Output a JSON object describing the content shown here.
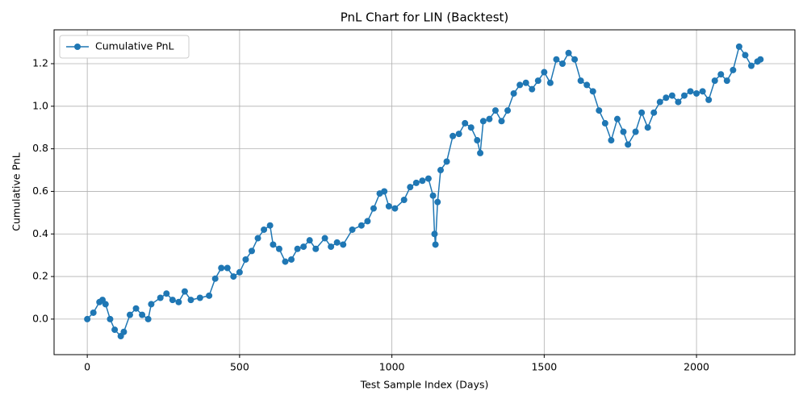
{
  "chart_data": {
    "type": "line",
    "title": "PnL Chart for LIN (Backtest)",
    "x_label": "Test Sample Index (Days)",
    "y_label": "Cumulative PnL",
    "x": [
      0,
      20,
      40,
      50,
      60,
      75,
      90,
      110,
      120,
      140,
      160,
      180,
      200,
      210,
      240,
      260,
      280,
      300,
      320,
      340,
      370,
      400,
      420,
      440,
      460,
      480,
      500,
      520,
      540,
      560,
      580,
      600,
      610,
      630,
      650,
      670,
      690,
      710,
      730,
      750,
      780,
      800,
      820,
      840,
      870,
      900,
      920,
      940,
      960,
      975,
      990,
      1010,
      1040,
      1060,
      1080,
      1100,
      1120,
      1135,
      1140,
      1143,
      1150,
      1160,
      1180,
      1200,
      1220,
      1240,
      1260,
      1280,
      1290,
      1300,
      1320,
      1340,
      1360,
      1380,
      1400,
      1420,
      1440,
      1460,
      1480,
      1500,
      1520,
      1540,
      1560,
      1580,
      1600,
      1620,
      1640,
      1660,
      1680,
      1700,
      1720,
      1740,
      1760,
      1775,
      1800,
      1820,
      1840,
      1860,
      1880,
      1900,
      1920,
      1940,
      1960,
      1980,
      2000,
      2020,
      2040,
      2060,
      2080,
      2100,
      2120,
      2140,
      2160,
      2180,
      2200,
      2210
    ],
    "series": [
      {
        "name": "Cumulative PnL",
        "color": "#1f77b4",
        "values": [
          0.0,
          0.03,
          0.08,
          0.09,
          0.07,
          0.0,
          -0.05,
          -0.08,
          -0.06,
          0.02,
          0.05,
          0.02,
          0.0,
          0.07,
          0.1,
          0.12,
          0.09,
          0.08,
          0.13,
          0.09,
          0.1,
          0.11,
          0.19,
          0.24,
          0.24,
          0.2,
          0.22,
          0.28,
          0.32,
          0.38,
          0.42,
          0.44,
          0.35,
          0.33,
          0.27,
          0.28,
          0.33,
          0.34,
          0.37,
          0.33,
          0.38,
          0.34,
          0.36,
          0.35,
          0.42,
          0.44,
          0.46,
          0.52,
          0.59,
          0.6,
          0.53,
          0.52,
          0.56,
          0.62,
          0.64,
          0.65,
          0.66,
          0.58,
          0.4,
          0.35,
          0.55,
          0.7,
          0.74,
          0.86,
          0.87,
          0.92,
          0.9,
          0.84,
          0.78,
          0.93,
          0.94,
          0.98,
          0.93,
          0.98,
          1.06,
          1.1,
          1.11,
          1.08,
          1.12,
          1.16,
          1.11,
          1.22,
          1.2,
          1.25,
          1.22,
          1.12,
          1.1,
          1.07,
          0.98,
          0.92,
          0.84,
          0.94,
          0.88,
          0.82,
          0.88,
          0.97,
          0.9,
          0.97,
          1.02,
          1.04,
          1.05,
          1.02,
          1.05,
          1.07,
          1.06,
          1.07,
          1.03,
          1.12,
          1.15,
          1.12,
          1.17,
          1.28,
          1.24,
          1.19,
          1.21,
          1.22
        ]
      }
    ],
    "xlim": [
      -109,
      2323
    ],
    "ylim": [
      -0.167,
      1.359
    ],
    "xticks": [
      0,
      500,
      1000,
      1500,
      2000
    ],
    "yticks": [
      {
        "value": 0,
        "label": "0.0"
      },
      {
        "value": 0.2,
        "label": "0.2"
      },
      {
        "value": 0.4,
        "label": "0.4"
      },
      {
        "value": 0.6,
        "label": "0.6"
      },
      {
        "value": 0.8,
        "label": "0.8"
      },
      {
        "value": 1,
        "label": "1.0"
      },
      {
        "value": 1.2,
        "label": "1.2"
      }
    ],
    "grid": true,
    "legend": "upper left"
  }
}
